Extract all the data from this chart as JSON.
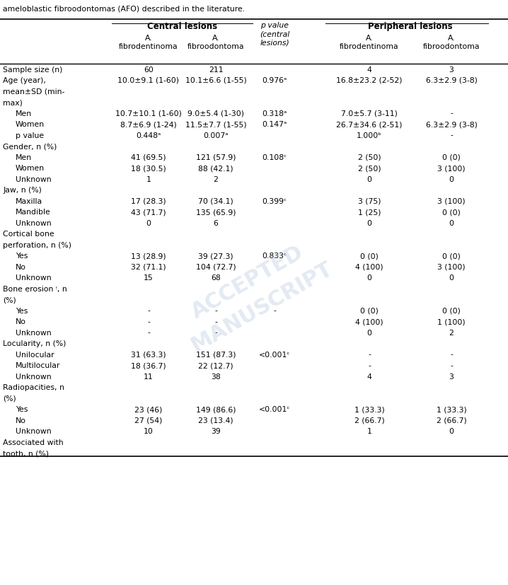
{
  "title_line": "ameloblastic fibroodontomas (AFO) described in the literature.",
  "rows": [
    {
      "label": "Sample size (n)",
      "indent": 0,
      "afd_c": "60",
      "afo_c": "211",
      "p": "",
      "afd_p": "4",
      "afo_p": "3"
    },
    {
      "label": "Age (year),",
      "indent": 0,
      "afd_c": "10.0±9.1 (1-60)",
      "afo_c": "10.1±6.6 (1-55)",
      "p": "0.976ᵃ",
      "afd_p": "16.8±23.2 (2-52)",
      "afo_p": "6.3±2.9 (3-8)"
    },
    {
      "label": "mean±SD (min-",
      "indent": 0,
      "afd_c": "",
      "afo_c": "",
      "p": "",
      "afd_p": "",
      "afo_p": ""
    },
    {
      "label": "max)",
      "indent": 0,
      "afd_c": "",
      "afo_c": "",
      "p": "",
      "afd_p": "",
      "afo_p": ""
    },
    {
      "label": "Men",
      "indent": 1,
      "afd_c": "10.7±10.1 (1-60)",
      "afo_c": "9.0±5.4 (1-30)",
      "p": "0.318ᵃ",
      "afd_p": "7.0±5.7 (3-11)",
      "afo_p": "-"
    },
    {
      "label": "Women",
      "indent": 1,
      "afd_c": "8.7±6.9 (1-24)",
      "afo_c": "11.5±7.7 (1-55)",
      "p": "0.147ᵃ",
      "afd_p": "26.7±34.6 (2-51)",
      "afo_p": "6.3±2.9 (3-8)"
    },
    {
      "label": "p value",
      "indent": 1,
      "afd_c": "0.448ᵃ",
      "afo_c": "0.007ᵃ",
      "p": "",
      "afd_p": "1.000ᵇ",
      "afo_p": "-"
    },
    {
      "label": "Gender, n (%)",
      "indent": 0,
      "afd_c": "",
      "afo_c": "",
      "p": "",
      "afd_p": "",
      "afo_p": ""
    },
    {
      "label": "Men",
      "indent": 1,
      "afd_c": "41 (69.5)",
      "afo_c": "121 (57.9)",
      "p": "0.108ᶜ",
      "afd_p": "2 (50)",
      "afo_p": "0 (0)"
    },
    {
      "label": "Women",
      "indent": 1,
      "afd_c": "18 (30.5)",
      "afo_c": "88 (42.1)",
      "p": "",
      "afd_p": "2 (50)",
      "afo_p": "3 (100)"
    },
    {
      "label": "Unknown",
      "indent": 1,
      "afd_c": "1",
      "afo_c": "2",
      "p": "",
      "afd_p": "0",
      "afo_p": "0"
    },
    {
      "label": "Jaw, n (%)",
      "indent": 0,
      "afd_c": "",
      "afo_c": "",
      "p": "",
      "afd_p": "",
      "afo_p": ""
    },
    {
      "label": "Maxilla",
      "indent": 1,
      "afd_c": "17 (28.3)",
      "afo_c": "70 (34.1)",
      "p": "0.399ᶜ",
      "afd_p": "3 (75)",
      "afo_p": "3 (100)"
    },
    {
      "label": "Mandible",
      "indent": 1,
      "afd_c": "43 (71.7)",
      "afo_c": "135 (65.9)",
      "p": "",
      "afd_p": "1 (25)",
      "afo_p": "0 (0)"
    },
    {
      "label": "Unknown",
      "indent": 1,
      "afd_c": "0",
      "afo_c": "6",
      "p": "",
      "afd_p": "0",
      "afo_p": "0"
    },
    {
      "label": "Cortical bone",
      "indent": 0,
      "afd_c": "",
      "afo_c": "",
      "p": "",
      "afd_p": "",
      "afo_p": ""
    },
    {
      "label": "perforation, n (%)",
      "indent": 0,
      "afd_c": "",
      "afo_c": "",
      "p": "",
      "afd_p": "",
      "afo_p": ""
    },
    {
      "label": "Yes",
      "indent": 1,
      "afd_c": "13 (28.9)",
      "afo_c": "39 (27.3)",
      "p": "0.833ᶜ",
      "afd_p": "0 (0)",
      "afo_p": "0 (0)"
    },
    {
      "label": "No",
      "indent": 1,
      "afd_c": "32 (71.1)",
      "afo_c": "104 (72.7)",
      "p": "",
      "afd_p": "4 (100)",
      "afo_p": "3 (100)"
    },
    {
      "label": "Unknown",
      "indent": 1,
      "afd_c": "15",
      "afo_c": "68",
      "p": "",
      "afd_p": "0",
      "afo_p": "0"
    },
    {
      "label": "Bone erosion ᵎ, n",
      "indent": 0,
      "afd_c": "",
      "afo_c": "",
      "p": "",
      "afd_p": "",
      "afo_p": ""
    },
    {
      "label": "(%)",
      "indent": 0,
      "afd_c": "",
      "afo_c": "",
      "p": "",
      "afd_p": "",
      "afo_p": ""
    },
    {
      "label": "Yes",
      "indent": 1,
      "afd_c": "-",
      "afo_c": "-",
      "p": "-",
      "afd_p": "0 (0)",
      "afo_p": "0 (0)"
    },
    {
      "label": "No",
      "indent": 1,
      "afd_c": "-",
      "afo_c": "-",
      "p": "",
      "afd_p": "4 (100)",
      "afo_p": "1 (100)"
    },
    {
      "label": "Unknown",
      "indent": 1,
      "afd_c": "-",
      "afo_c": "-",
      "p": "",
      "afd_p": "0",
      "afo_p": "2"
    },
    {
      "label": "Locularity, n (%)",
      "indent": 0,
      "afd_c": "",
      "afo_c": "",
      "p": "",
      "afd_p": "",
      "afo_p": ""
    },
    {
      "label": "Unilocular",
      "indent": 1,
      "afd_c": "31 (63.3)",
      "afo_c": "151 (87.3)",
      "p": "<0.001ᶜ",
      "afd_p": "-",
      "afo_p": "-"
    },
    {
      "label": "Multilocular",
      "indent": 1,
      "afd_c": "18 (36.7)",
      "afo_c": "22 (12.7)",
      "p": "",
      "afd_p": "-",
      "afo_p": "-"
    },
    {
      "label": "Unknown",
      "indent": 1,
      "afd_c": "11",
      "afo_c": "38",
      "p": "",
      "afd_p": "4",
      "afo_p": "3"
    },
    {
      "label": "Radiopacities, n",
      "indent": 0,
      "afd_c": "",
      "afo_c": "",
      "p": "",
      "afd_p": "",
      "afo_p": ""
    },
    {
      "label": "(%)",
      "indent": 0,
      "afd_c": "",
      "afo_c": "",
      "p": "",
      "afd_p": "",
      "afo_p": ""
    },
    {
      "label": "Yes",
      "indent": 1,
      "afd_c": "23 (46)",
      "afo_c": "149 (86.6)",
      "p": "<0.001ᶜ",
      "afd_p": "1 (33.3)",
      "afo_p": "1 (33.3)"
    },
    {
      "label": "No",
      "indent": 1,
      "afd_c": "27 (54)",
      "afo_c": "23 (13.4)",
      "p": "",
      "afd_p": "2 (66.7)",
      "afo_p": "2 (66.7)"
    },
    {
      "label": "Unknown",
      "indent": 1,
      "afd_c": "10",
      "afo_c": "39",
      "p": "",
      "afd_p": "1",
      "afo_p": "0"
    },
    {
      "label": "Associated with",
      "indent": 0,
      "afd_c": "",
      "afo_c": "",
      "p": "",
      "afd_p": "",
      "afo_p": ""
    },
    {
      "label": "tooth, n (%)",
      "indent": 0,
      "afd_c": "",
      "afo_c": "",
      "p": "",
      "afd_p": "",
      "afo_p": ""
    }
  ],
  "bg_color": "#ffffff",
  "text_color": "#000000",
  "font_size": 7.8,
  "header_font_size": 8.5
}
